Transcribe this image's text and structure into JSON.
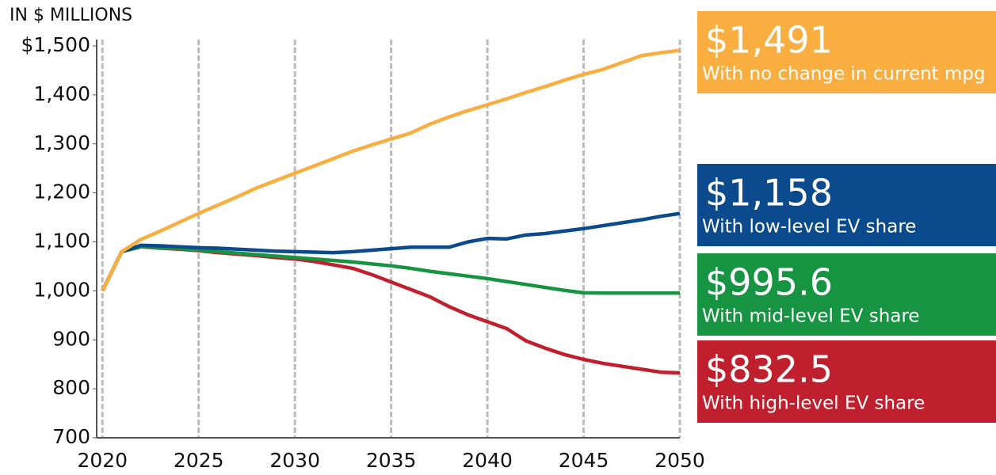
{
  "chart_data": {
    "type": "line",
    "y_label": "IN $ MILLIONS",
    "x": [
      2020,
      2021,
      2022,
      2023,
      2024,
      2025,
      2026,
      2027,
      2028,
      2029,
      2030,
      2031,
      2032,
      2033,
      2034,
      2035,
      2036,
      2037,
      2038,
      2039,
      2040,
      2041,
      2042,
      2043,
      2044,
      2045,
      2046,
      2047,
      2048,
      2049,
      2050
    ],
    "series": [
      {
        "name": "With no change in current mpg",
        "end_label": "$1,491",
        "color": "#f9ae3f",
        "values": [
          1000,
          1080,
          1105,
          1122,
          1140,
          1158,
          1175,
          1192,
          1210,
          1225,
          1240,
          1255,
          1270,
          1285,
          1298,
          1310,
          1322,
          1340,
          1355,
          1368,
          1380,
          1392,
          1405,
          1417,
          1430,
          1442,
          1452,
          1466,
          1480,
          1486,
          1491
        ]
      },
      {
        "name": "With low-level EV share",
        "end_label": "$1,158",
        "color": "#0b4a8c",
        "values": [
          1000,
          1080,
          1093,
          1092,
          1090,
          1088,
          1087,
          1085,
          1083,
          1081,
          1080,
          1079,
          1078,
          1080,
          1083,
          1086,
          1089,
          1089,
          1089,
          1100,
          1107,
          1106,
          1114,
          1117,
          1122,
          1127,
          1133,
          1139,
          1145,
          1152,
          1158
        ]
      },
      {
        "name": "With mid-level EV share",
        "end_label": "$995.6",
        "color": "#179442",
        "values": [
          1000,
          1080,
          1090,
          1088,
          1086,
          1083,
          1080,
          1077,
          1074,
          1071,
          1068,
          1065,
          1062,
          1059,
          1055,
          1051,
          1046,
          1040,
          1035,
          1030,
          1025,
          1019,
          1013,
          1007,
          1001,
          996,
          995.6,
          995.6,
          995.6,
          995.6,
          995.6
        ]
      },
      {
        "name": "With high-level EV share",
        "end_label": "$832.5",
        "color": "#c01f2e",
        "values": [
          1000,
          1080,
          1090,
          1087,
          1085,
          1082,
          1078,
          1075,
          1072,
          1068,
          1065,
          1060,
          1053,
          1046,
          1033,
          1018,
          1003,
          988,
          968,
          951,
          937,
          923,
          898,
          883,
          870,
          860,
          852,
          846,
          840,
          834,
          832.5
        ]
      }
    ],
    "xlim": [
      2019.7,
      2050
    ],
    "xticks": [
      2020,
      2025,
      2030,
      2035,
      2040,
      2045,
      2050
    ],
    "ylim": [
      700,
      1500
    ],
    "yticks": [
      {
        "value": 1500,
        "label": "$1,500"
      },
      {
        "value": 1400,
        "label": "1,400"
      },
      {
        "value": 1300,
        "label": "1,300"
      },
      {
        "value": 1200,
        "label": "1,200"
      },
      {
        "value": 1100,
        "label": "1,100"
      },
      {
        "value": 1000,
        "label": "1,000"
      },
      900,
      800,
      700
    ],
    "grid": "x"
  }
}
